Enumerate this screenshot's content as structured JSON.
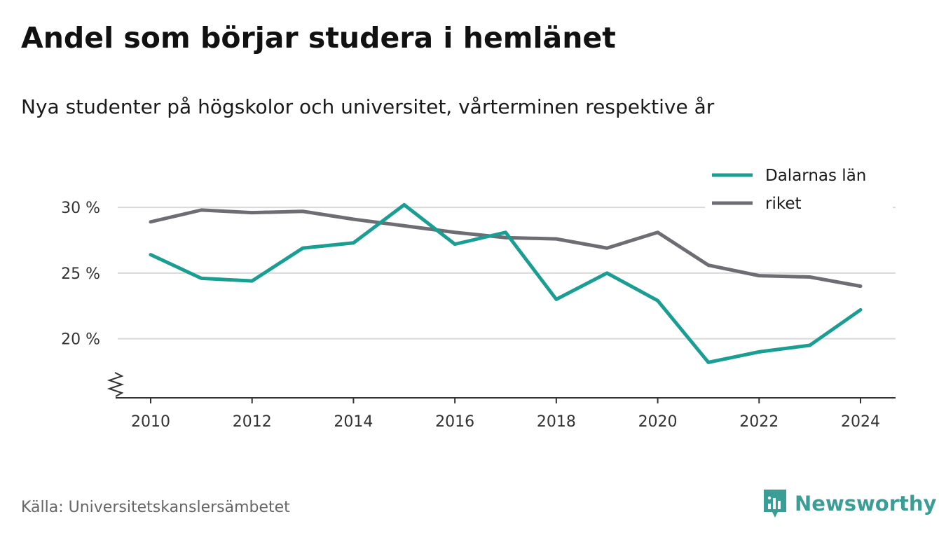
{
  "chart_data": {
    "type": "line",
    "title": "Andel som börjar studera i hemlänet",
    "subtitle": "Nya studenter på högskolor och universitet, vårterminen respektive år",
    "x": [
      2010,
      2011,
      2012,
      2013,
      2014,
      2015,
      2016,
      2017,
      2018,
      2019,
      2020,
      2021,
      2022,
      2023,
      2024
    ],
    "series": [
      {
        "name": "Dalarnas län",
        "color": "#1a9e94",
        "values": [
          26.4,
          24.6,
          24.4,
          26.9,
          27.3,
          30.2,
          27.2,
          28.1,
          23.0,
          25.0,
          22.9,
          18.2,
          19.0,
          19.5,
          22.2
        ]
      },
      {
        "name": "riket",
        "color": "#6e6d73",
        "values": [
          28.9,
          29.8,
          29.6,
          29.7,
          29.1,
          28.6,
          28.1,
          27.7,
          27.6,
          26.9,
          28.1,
          25.6,
          24.8,
          24.7,
          24.0
        ]
      }
    ],
    "ylim": [
      15.5,
      31.5
    ],
    "yticks": [
      20,
      25,
      30
    ],
    "ytick_labels": [
      "20 %",
      "25 %",
      "30 %"
    ],
    "xticks": [
      2010,
      2012,
      2014,
      2016,
      2018,
      2020,
      2022,
      2024
    ],
    "xtick_labels": [
      "2010",
      "2012",
      "2014",
      "2016",
      "2018",
      "2020",
      "2022",
      "2024"
    ],
    "grid": true,
    "axis_break": true,
    "legend_position": "top-right"
  },
  "source": "Källa: Universitetskanslersämbetet",
  "brand": {
    "name": "Newsworthy",
    "logo_icon": "bar-chart-speech-bubble-icon",
    "color": "#3a9e96"
  }
}
